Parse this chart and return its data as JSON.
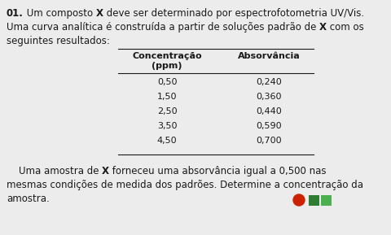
{
  "bg_color": "#ececec",
  "text_color": "#1a1a1a",
  "title_num": "01.",
  "col1_header": "Concentração",
  "col1_subheader": "(ppm)",
  "col2_header": "Absorvância",
  "concentrations": [
    "0,50",
    "1,50",
    "2,50",
    "3,50",
    "4,50"
  ],
  "absorbances": [
    "0,240",
    "0,360",
    "0,440",
    "0,590",
    "0,700"
  ],
  "circle_color": "#cc2200",
  "square1_color": "#2e7d32",
  "square2_color": "#4caf50",
  "fs_text": 8.5,
  "fs_table": 8.0
}
